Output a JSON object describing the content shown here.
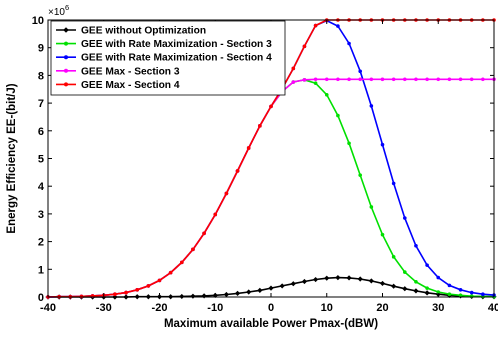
{
  "chart_data": {
    "type": "line",
    "title": "",
    "xlabel": "Maximum available Power Pmax-(dBW)",
    "ylabel": "Energy Efficiency EE-(bit/J)",
    "y_multiplier_label": "×10",
    "y_multiplier_exp": "6",
    "xlim": [
      -40,
      40
    ],
    "ylim": [
      0,
      10
    ],
    "x_ticks": [
      -40,
      -30,
      -20,
      -10,
      0,
      10,
      20,
      30,
      40
    ],
    "y_ticks": [
      0,
      1,
      2,
      3,
      4,
      5,
      6,
      7,
      8,
      9,
      10
    ],
    "y_unit_scale": 1000000,
    "grid": false,
    "legend_position": "top-left",
    "x": [
      -40,
      -38,
      -36,
      -34,
      -32,
      -30,
      -28,
      -26,
      -24,
      -22,
      -20,
      -18,
      -16,
      -14,
      -12,
      -10,
      -8,
      -6,
      -4,
      -2,
      0,
      2,
      4,
      6,
      8,
      10,
      12,
      14,
      16,
      18,
      20,
      22,
      24,
      26,
      28,
      30,
      32,
      34,
      36,
      38,
      40
    ],
    "series": [
      {
        "name": "GEE without Optimization",
        "color": "#000000",
        "marker": "diamond",
        "values": [
          0,
          0,
          0,
          0,
          0,
          0,
          0,
          0,
          0.01,
          0.01,
          0.01,
          0.01,
          0.02,
          0.03,
          0.04,
          0.06,
          0.09,
          0.13,
          0.18,
          0.24,
          0.32,
          0.4,
          0.48,
          0.56,
          0.63,
          0.68,
          0.7,
          0.69,
          0.65,
          0.58,
          0.49,
          0.39,
          0.3,
          0.22,
          0.15,
          0.1,
          0.06,
          0.04,
          0.02,
          0.01,
          0.01
        ]
      },
      {
        "name": "GEE with Rate Maximization - Section 3",
        "color": "#00e000",
        "marker": "dot",
        "values": [
          0.0,
          0.01,
          0.01,
          0.02,
          0.04,
          0.06,
          0.1,
          0.16,
          0.26,
          0.4,
          0.6,
          0.88,
          1.25,
          1.72,
          2.3,
          2.98,
          3.74,
          4.55,
          5.38,
          6.18,
          6.88,
          7.42,
          7.76,
          7.84,
          7.72,
          7.3,
          6.55,
          5.55,
          4.4,
          3.25,
          2.25,
          1.45,
          0.9,
          0.55,
          0.32,
          0.18,
          0.1,
          0.06,
          0.03,
          0.02,
          0.01
        ]
      },
      {
        "name": "GEE with Rate Maximization - Section 4",
        "color": "#0000ff",
        "marker": "dot",
        "values": [
          0.0,
          0.01,
          0.01,
          0.02,
          0.04,
          0.06,
          0.1,
          0.16,
          0.26,
          0.4,
          0.6,
          0.88,
          1.25,
          1.72,
          2.3,
          2.98,
          3.74,
          4.55,
          5.38,
          6.18,
          6.88,
          7.52,
          8.25,
          9.05,
          9.8,
          9.98,
          9.78,
          9.15,
          8.15,
          6.9,
          5.5,
          4.1,
          2.85,
          1.85,
          1.15,
          0.7,
          0.42,
          0.26,
          0.16,
          0.1,
          0.07
        ]
      },
      {
        "name": "GEE Max - Section 3",
        "color": "#ff00ff",
        "marker": "dot",
        "values": [
          0.0,
          0.01,
          0.01,
          0.02,
          0.04,
          0.06,
          0.1,
          0.16,
          0.26,
          0.4,
          0.6,
          0.88,
          1.25,
          1.72,
          2.3,
          2.98,
          3.74,
          4.55,
          5.38,
          6.18,
          6.88,
          7.42,
          7.76,
          7.84,
          7.86,
          7.86,
          7.86,
          7.86,
          7.86,
          7.86,
          7.86,
          7.86,
          7.86,
          7.86,
          7.86,
          7.86,
          7.86,
          7.86,
          7.86,
          7.86,
          7.86
        ]
      },
      {
        "name": "GEE Max - Section 4",
        "color": "#ff0000",
        "marker": "dot",
        "values": [
          0.0,
          0.01,
          0.01,
          0.02,
          0.04,
          0.06,
          0.1,
          0.16,
          0.26,
          0.4,
          0.6,
          0.88,
          1.25,
          1.72,
          2.3,
          2.98,
          3.74,
          4.55,
          5.38,
          6.18,
          6.88,
          7.52,
          8.25,
          9.05,
          9.8,
          10.0,
          10.0,
          10.0,
          10.0,
          10.0,
          10.0,
          10.0,
          10.0,
          10.0,
          10.0,
          10.0,
          10.0,
          10.0,
          10.0,
          10.0,
          10.0
        ]
      }
    ]
  }
}
